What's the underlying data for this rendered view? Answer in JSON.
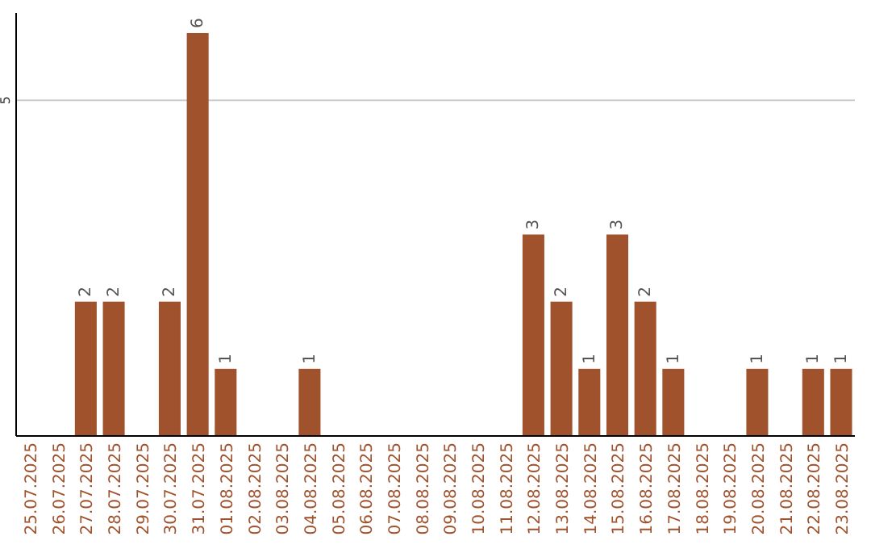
{
  "chart_data": {
    "type": "bar",
    "categories": [
      "25.07.2025",
      "26.07.2025",
      "27.07.2025",
      "28.07.2025",
      "29.07.2025",
      "30.07.2025",
      "31.07.2025",
      "01.08.2025",
      "02.08.2025",
      "03.08.2025",
      "04.08.2025",
      "05.08.2025",
      "06.08.2025",
      "07.08.2025",
      "08.08.2025",
      "09.08.2025",
      "10.08.2025",
      "11.08.2025",
      "12.08.2025",
      "13.08.2025",
      "14.08.2025",
      "15.08.2025",
      "16.08.2025",
      "17.08.2025",
      "18.08.2025",
      "19.08.2025",
      "20.08.2025",
      "21.08.2025",
      "22.08.2025",
      "23.08.2025"
    ],
    "values": [
      0,
      0,
      2,
      2,
      0,
      2,
      6,
      1,
      0,
      0,
      1,
      0,
      0,
      0,
      0,
      0,
      0,
      0,
      3,
      2,
      1,
      3,
      2,
      1,
      0,
      0,
      1,
      0,
      1,
      1
    ],
    "value_labels": [
      null,
      null,
      "2",
      "2",
      null,
      "2",
      "6",
      "1",
      null,
      null,
      "1",
      null,
      null,
      null,
      null,
      null,
      null,
      null,
      "3",
      "2",
      "1",
      "3",
      "2",
      "1",
      null,
      null,
      "1",
      null,
      "1",
      "1"
    ],
    "color": "#a0522d",
    "ylim": [
      0,
      6.3
    ],
    "yticks": [
      5
    ],
    "grid": "y"
  }
}
